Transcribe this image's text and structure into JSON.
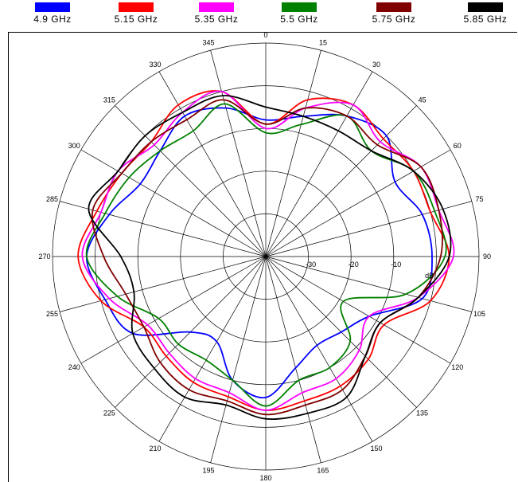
{
  "chart_data": {
    "type": "line",
    "subtype": "polar",
    "title": "",
    "legend_position": "top",
    "angle_ticks": [
      "0",
      "15",
      "30",
      "45",
      "60",
      "75",
      "90",
      "105",
      "120",
      "135",
      "150",
      "165",
      "180",
      "195",
      "210",
      "225",
      "240",
      "255",
      "270",
      "285",
      "300",
      "315",
      "330",
      "345"
    ],
    "angle_direction": "clockwise",
    "radial_ticks": [
      "-30",
      "-20",
      "-10",
      "dB"
    ],
    "radial_range": [
      -40,
      10
    ],
    "grid": true,
    "angles": [
      0,
      15,
      30,
      45,
      60,
      75,
      90,
      105,
      120,
      135,
      150,
      165,
      180,
      195,
      210,
      225,
      240,
      255,
      270,
      285,
      300,
      315,
      330,
      345
    ],
    "series": [
      {
        "name": "4.9 GHz",
        "color": "#0000ff",
        "values": [
          -8,
          -6,
          -2,
          0,
          -5,
          -2,
          -1,
          -2,
          -12,
          -15,
          -16,
          -13,
          -7,
          -10,
          -17,
          -15,
          -4,
          -1,
          2,
          -2,
          -6,
          -5,
          -2,
          -4
        ]
      },
      {
        "name": "5.15 GHz",
        "color": "#ff0000",
        "values": [
          -9,
          -2,
          1,
          -1,
          0,
          0,
          3,
          0,
          -8,
          -6,
          -5,
          -5,
          -4,
          -6,
          -6,
          -7,
          -7,
          0,
          4,
          1,
          -1,
          -2,
          1,
          0
        ]
      },
      {
        "name": "5.35 GHz",
        "color": "#ff00ff",
        "values": [
          -10,
          -4,
          1,
          -2,
          2,
          2,
          4,
          -3,
          -12,
          -9,
          -7,
          -7,
          -4,
          -7,
          -7,
          -8,
          -8,
          -2,
          3,
          0,
          0,
          -3,
          -1,
          0
        ]
      },
      {
        "name": "5.5 GHz",
        "color": "#008000",
        "values": [
          -11,
          -8,
          -2,
          -5,
          0,
          1,
          2,
          -6,
          -19,
          -12,
          -10,
          -10,
          -5,
          -10,
          -12,
          -11,
          -11,
          -4,
          2,
          -1,
          -3,
          -5,
          -6,
          -3
        ]
      },
      {
        "name": "5.75 GHz",
        "color": "#800000",
        "values": [
          -9,
          -4,
          -2,
          -3,
          2,
          2,
          1,
          -3,
          -9,
          -7,
          -4,
          -4,
          -3,
          -5,
          -4,
          -5,
          -7,
          -6,
          -2,
          2,
          -1,
          -2,
          -3,
          -2
        ]
      },
      {
        "name": "5.85 GHz",
        "color": "#000000",
        "values": [
          -5,
          -6,
          -6,
          -5,
          0,
          3,
          3,
          -3,
          -9,
          -7,
          -2,
          -2,
          -2,
          -4,
          -2,
          -3,
          -4,
          -8,
          -6,
          3,
          0,
          0,
          -1,
          -1
        ]
      }
    ]
  }
}
